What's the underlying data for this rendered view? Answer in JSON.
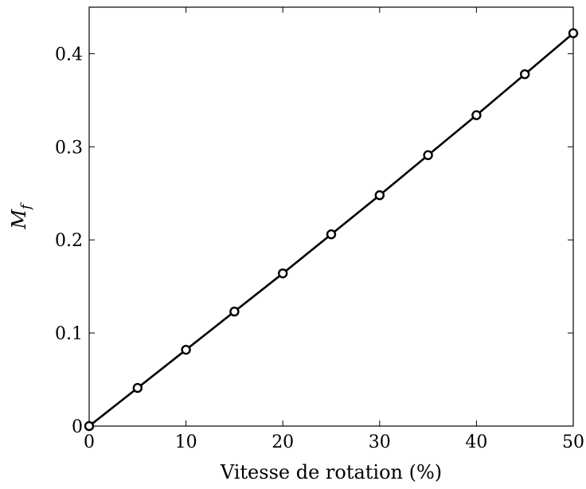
{
  "chart_data": {
    "type": "line",
    "xlabel": "Vitesse de rotation (%)",
    "ylabel": "M",
    "ylabel_subscript": "f",
    "xlim": [
      0,
      50
    ],
    "ylim": [
      0,
      0.45
    ],
    "grid": false,
    "x_ticks": [
      0,
      10,
      20,
      30,
      40,
      50
    ],
    "y_ticks": [
      0,
      0.1,
      0.2,
      0.3,
      0.4
    ],
    "x_tick_labels": [
      "0",
      "10",
      "20",
      "30",
      "40",
      "50"
    ],
    "y_tick_labels": [
      "0",
      "0.1",
      "0.2",
      "0.3",
      "0.4"
    ],
    "colors": {
      "line": "#000000",
      "marker_fill": "#ffffff"
    },
    "series": [
      {
        "marker": "circle",
        "x": [
          0,
          5,
          10,
          15,
          20,
          25,
          30,
          35,
          40,
          45,
          50
        ],
        "y": [
          0,
          0.041,
          0.082,
          0.123,
          0.164,
          0.206,
          0.248,
          0.291,
          0.334,
          0.378,
          0.422
        ]
      }
    ]
  }
}
